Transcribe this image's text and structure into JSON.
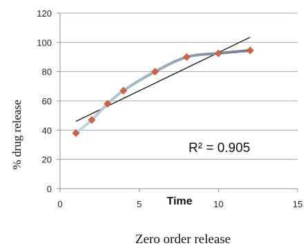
{
  "chart_data": {
    "type": "scatter",
    "x": [
      1,
      2,
      3,
      4,
      6,
      8,
      10,
      12
    ],
    "y": [
      38,
      47,
      58,
      67,
      80,
      90,
      92.5,
      94.5
    ],
    "xlabel": "Time",
    "ylabel": "% drug release",
    "caption": "Zero order release",
    "annotation": "R² = 0.905",
    "xlim": [
      0,
      15
    ],
    "ylim": [
      0,
      120
    ],
    "xticks": [
      "0",
      "5",
      "10",
      "15"
    ],
    "yticks": [
      "0",
      "20",
      "40",
      "60",
      "80",
      "100",
      "120"
    ],
    "xtick_values": [
      0,
      5,
      10,
      15
    ],
    "ytick_values": [
      0,
      20,
      40,
      60,
      80,
      100,
      120
    ],
    "trendline": {
      "x": [
        1,
        12
      ],
      "y": [
        46,
        103.5
      ]
    },
    "grid": "horizontal",
    "legend": "none",
    "colors": {
      "marker": "#d9603b",
      "curve_start": "#b8dde0",
      "curve_end": "#707a94",
      "trendline": "#111111",
      "grid": "#a6a6a6"
    }
  }
}
